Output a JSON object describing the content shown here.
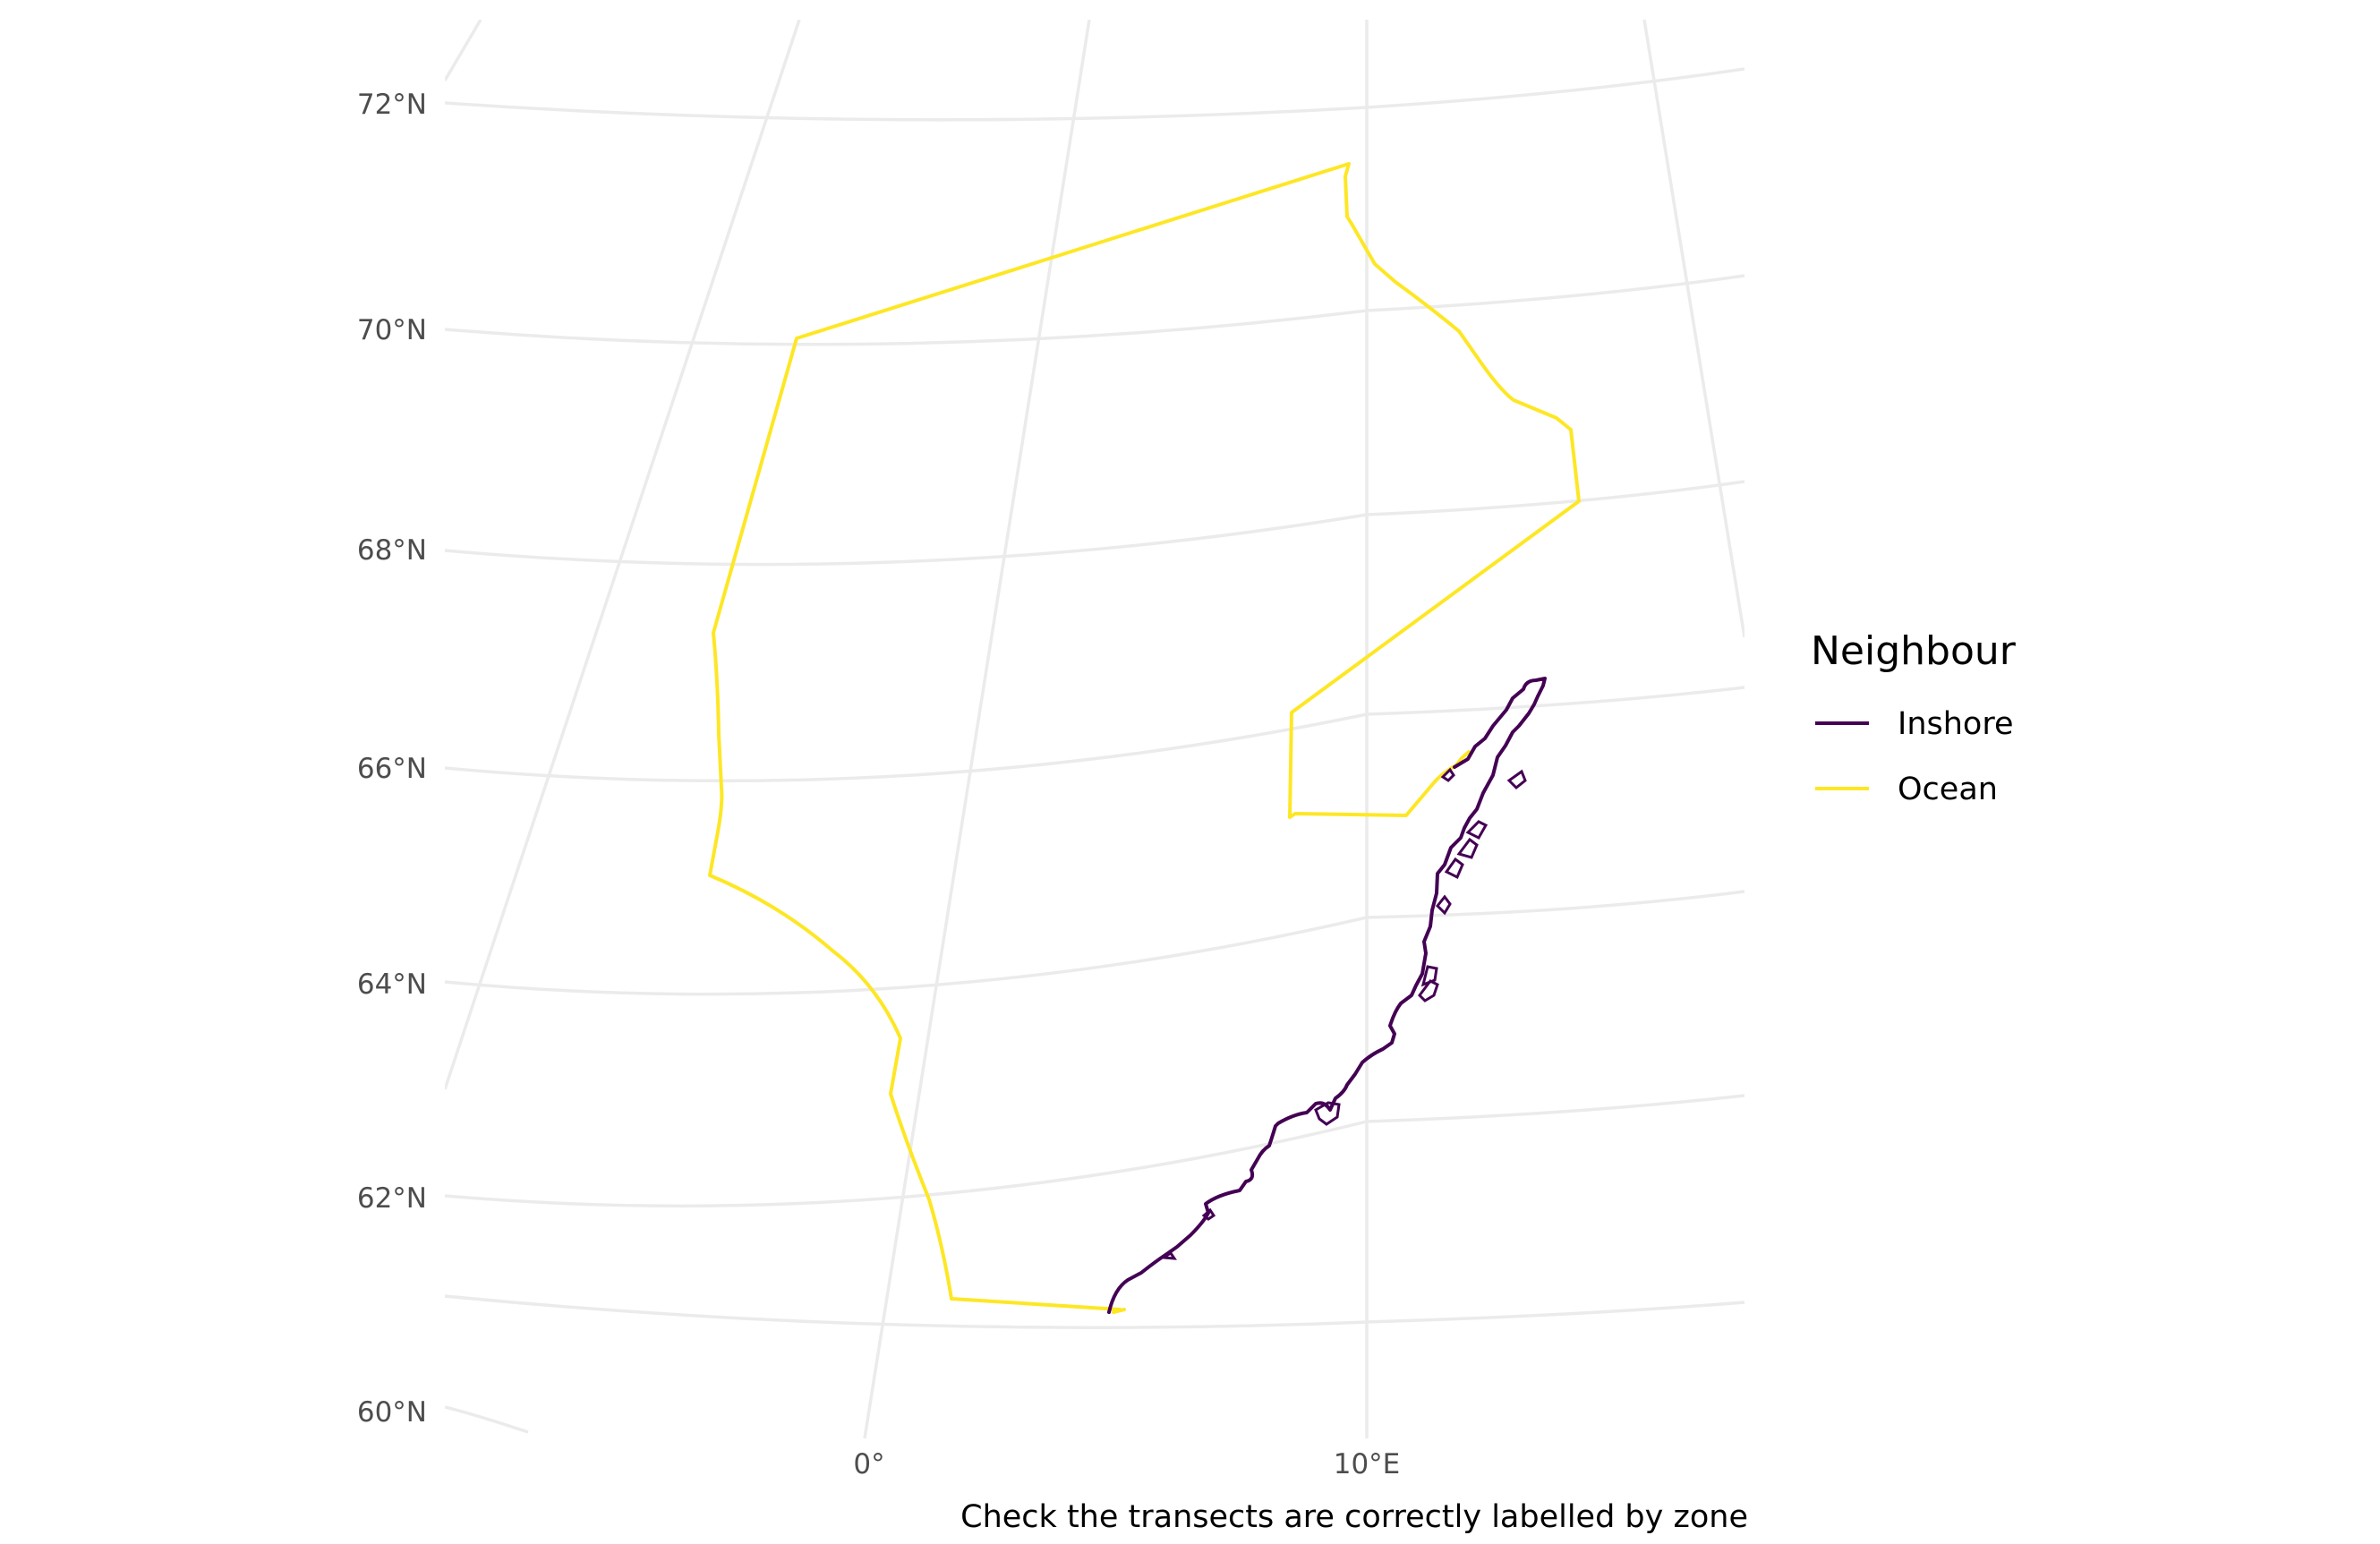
{
  "chart_data": {
    "type": "map",
    "projection": "polar stereographic, centred near 10°E",
    "graticule": {
      "latitudes": [
        60,
        62,
        64,
        66,
        68,
        70,
        72
      ],
      "longitudes": [
        -10,
        0,
        10,
        20
      ],
      "lat_labels": [
        "60°N",
        "62°N",
        "64°N",
        "66°N",
        "68°N",
        "70°N",
        "72°N"
      ],
      "lon_labels": [
        "0°",
        "10°E"
      ]
    },
    "legend": {
      "title": "Neighbour",
      "placement": "right",
      "entries": [
        {
          "label": "Inshore",
          "color": "#440154"
        },
        {
          "label": "Ocean",
          "color": "#FDE725"
        }
      ]
    },
    "caption": "Check the transects are correctly labelled by zone",
    "series": [
      {
        "name": "Ocean",
        "color": "#FDE725",
        "description": "Offshore boundary polygon from approx 61°N 4°E north to 71.5°N 10°E, east to 68.5°N 15°E and back down to the coast near 65.5°N 9°E"
      },
      {
        "name": "Inshore",
        "color": "#440154",
        "description": "Norwegian coastline between approx 61°N 5°E and 66.5°N 13.5°E"
      }
    ]
  }
}
